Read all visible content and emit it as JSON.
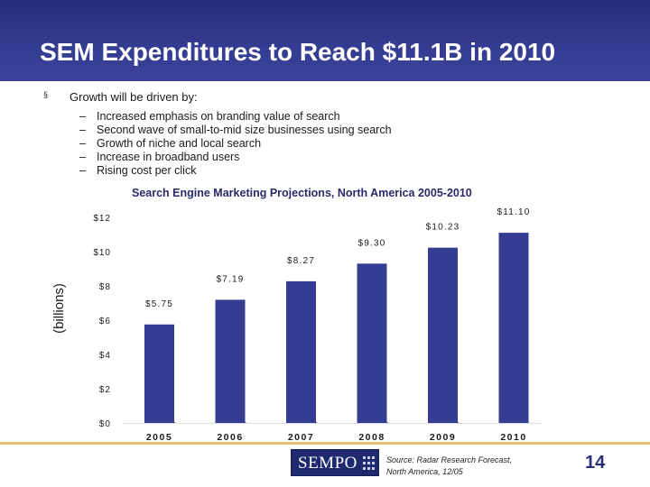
{
  "slide": {
    "title": "SEM Expenditures to Reach $11.1B in 2010",
    "page_number": "14"
  },
  "bullets": {
    "marker": "§",
    "heading": "Growth will be driven by:",
    "sub_marker": "–",
    "items": [
      "Increased emphasis on branding value of search",
      "Second wave of small-to-mid size businesses using search",
      "Growth of niche and local search",
      "Increase in broadband users",
      "Rising cost per click"
    ]
  },
  "footer": {
    "logo_text": "SEMPO",
    "source_line1": "Source: Radar Research Forecast,",
    "source_line2": "North America, 12/05"
  },
  "colors": {
    "header": "#353d93",
    "bar": "#353d93",
    "footer_line": "#e3c072"
  },
  "chart_data": {
    "type": "bar",
    "title": "Search Engine Marketing Projections, North America 2005-2010",
    "ylabel": "(billions)",
    "categories": [
      "2005",
      "2006",
      "2007",
      "2008",
      "2009",
      "2010"
    ],
    "values": [
      5.75,
      7.19,
      8.27,
      9.3,
      10.23,
      11.1
    ],
    "data_labels": [
      "$5.75",
      "$7.19",
      "$8.27",
      "$9.30",
      "$10.23",
      "$11.10"
    ],
    "ylim": [
      0,
      12
    ],
    "yticks": [
      0,
      2,
      4,
      6,
      8,
      10,
      12
    ],
    "ytick_labels": [
      "$0",
      "$2",
      "$4",
      "$6",
      "$8",
      "$10",
      "$12"
    ],
    "grid": false,
    "legend": "none"
  }
}
